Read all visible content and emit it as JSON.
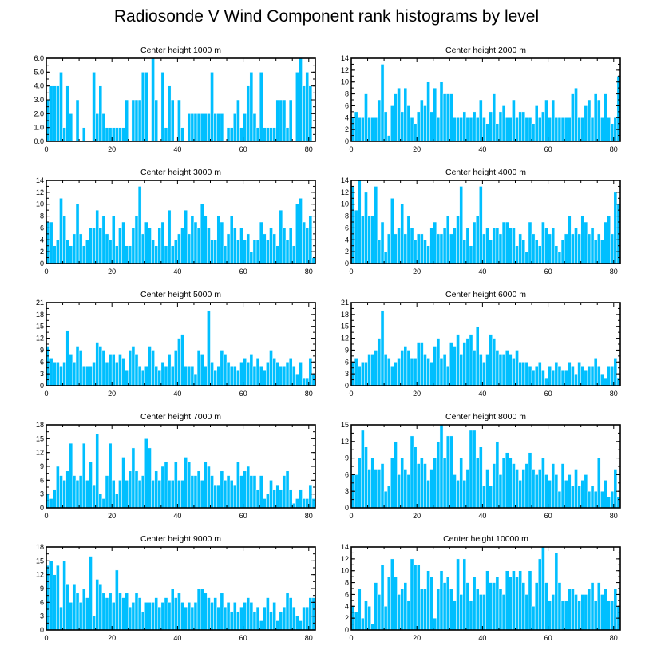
{
  "title": "Radiosonde V Wind Component rank histograms by level",
  "colors": {
    "bar": "#00bfff",
    "axis": "#000000",
    "background": "#ffffff"
  },
  "chart_data": [
    {
      "type": "bar",
      "title": "Center height 1000 m",
      "xlabel": "",
      "ylabel": "",
      "xlim": [
        0,
        82
      ],
      "ylim": [
        0,
        6
      ],
      "xticks": [
        0,
        20,
        40,
        60,
        80
      ],
      "yticks": [
        0,
        1,
        2,
        3,
        4,
        5,
        6
      ],
      "yticklabels": [
        "0.0",
        "1.0",
        "2.0",
        "3.0",
        "4.0",
        "5.0",
        "6.0"
      ],
      "x_start": 0,
      "values": [
        3,
        4,
        4,
        4,
        5,
        1,
        4,
        2,
        0,
        3,
        0,
        1,
        0,
        0,
        5,
        2,
        4,
        2,
        1,
        1,
        1,
        1,
        1,
        1,
        3,
        0,
        3,
        3,
        3,
        5,
        5,
        0,
        6,
        3,
        0,
        5,
        1,
        4,
        3,
        0,
        3,
        1,
        0,
        2,
        2,
        2,
        2,
        2,
        2,
        2,
        5,
        2,
        2,
        2,
        0,
        1,
        1,
        2,
        3,
        1,
        2,
        4,
        5,
        2,
        1,
        5,
        1,
        1,
        1,
        1,
        3,
        3,
        3,
        1,
        3,
        0,
        5,
        6,
        4,
        5,
        4,
        0
      ]
    },
    {
      "type": "bar",
      "title": "Center height 2000 m",
      "xlabel": "",
      "ylabel": "",
      "xlim": [
        0,
        82
      ],
      "ylim": [
        0,
        14
      ],
      "xticks": [
        0,
        20,
        40,
        60,
        80
      ],
      "yticks": [
        0,
        2,
        4,
        6,
        8,
        10,
        12,
        14
      ],
      "yticklabels": [
        "0",
        "2",
        "4",
        "6",
        "8",
        "10",
        "12",
        "14"
      ],
      "x_start": 0,
      "values": [
        4,
        5,
        4,
        4,
        8,
        4,
        4,
        4,
        7,
        13,
        5,
        1,
        6,
        8,
        9,
        5,
        9,
        6,
        4,
        3,
        5,
        7,
        6,
        10,
        5,
        9,
        4,
        10,
        8,
        8,
        8,
        4,
        4,
        4,
        5,
        4,
        4,
        5,
        4,
        7,
        4,
        3,
        5,
        8,
        3,
        5,
        6,
        4,
        4,
        7,
        4,
        5,
        5,
        4,
        4,
        3,
        6,
        4,
        5,
        7,
        4,
        7,
        4,
        4,
        4,
        4,
        4,
        8,
        9,
        4,
        4,
        6,
        7,
        4,
        8,
        7,
        4,
        8,
        4,
        3,
        4,
        11
      ]
    },
    {
      "type": "bar",
      "title": "Center height 3000 m",
      "xlabel": "",
      "ylabel": "",
      "xlim": [
        0,
        82
      ],
      "ylim": [
        0,
        14
      ],
      "xticks": [
        0,
        20,
        40,
        60,
        80
      ],
      "yticks": [
        0,
        2,
        4,
        6,
        8,
        10,
        12,
        14
      ],
      "yticklabels": [
        "0",
        "2",
        "4",
        "6",
        "8",
        "10",
        "12",
        "14"
      ],
      "x_start": 0,
      "values": [
        7,
        7,
        3,
        4,
        11,
        8,
        4,
        3,
        5,
        10,
        5,
        3,
        4,
        6,
        6,
        9,
        6,
        8,
        5,
        4,
        8,
        3,
        6,
        7,
        3,
        3,
        6,
        8,
        13,
        5,
        7,
        6,
        4,
        3,
        6,
        7,
        3,
        9,
        3,
        4,
        5,
        6,
        9,
        5,
        8,
        7,
        6,
        10,
        8,
        6,
        4,
        4,
        8,
        7,
        3,
        5,
        8,
        6,
        4,
        6,
        4,
        5,
        2,
        4,
        4,
        7,
        5,
        4,
        6,
        5,
        3,
        9,
        6,
        4,
        6,
        3,
        10,
        11,
        7,
        6,
        8,
        1
      ]
    },
    {
      "type": "bar",
      "title": "Center height 4000 m",
      "xlabel": "",
      "ylabel": "",
      "xlim": [
        0,
        82
      ],
      "ylim": [
        0,
        14
      ],
      "xticks": [
        0,
        20,
        40,
        60,
        80
      ],
      "yticks": [
        0,
        2,
        4,
        6,
        8,
        10,
        12,
        14
      ],
      "yticklabels": [
        "0",
        "2",
        "4",
        "6",
        "8",
        "10",
        "12",
        "14"
      ],
      "x_start": 0,
      "values": [
        13,
        9,
        14,
        8,
        12,
        8,
        8,
        13,
        4,
        7,
        2,
        5,
        11,
        5,
        6,
        10,
        5,
        8,
        6,
        4,
        5,
        5,
        4,
        3,
        6,
        7,
        5,
        5,
        6,
        8,
        5,
        6,
        8,
        13,
        4,
        6,
        3,
        7,
        8,
        13,
        5,
        6,
        4,
        6,
        6,
        5,
        7,
        7,
        6,
        6,
        3,
        5,
        4,
        2,
        7,
        5,
        4,
        3,
        7,
        6,
        5,
        6,
        3,
        2,
        4,
        5,
        8,
        5,
        6,
        5,
        8,
        7,
        5,
        6,
        4,
        5,
        4,
        7,
        8,
        5,
        12,
        10
      ]
    },
    {
      "type": "bar",
      "title": "Center height 5000 m",
      "xlabel": "",
      "ylabel": "",
      "xlim": [
        0,
        82
      ],
      "ylim": [
        0,
        21
      ],
      "xticks": [
        0,
        20,
        40,
        60,
        80
      ],
      "yticks": [
        0,
        3,
        6,
        9,
        12,
        15,
        18,
        21
      ],
      "yticklabels": [
        "0",
        "3",
        "6",
        "9",
        "12",
        "15",
        "18",
        "21"
      ],
      "x_start": 0,
      "values": [
        10,
        7,
        6,
        6,
        5,
        6,
        14,
        8,
        6,
        10,
        9,
        5,
        5,
        5,
        6,
        11,
        10,
        9,
        6,
        8,
        8,
        6,
        8,
        7,
        4,
        9,
        10,
        8,
        5,
        4,
        5,
        10,
        9,
        5,
        4,
        6,
        5,
        8,
        5,
        9,
        12,
        13,
        5,
        5,
        5,
        3,
        9,
        8,
        5,
        19,
        6,
        4,
        5,
        9,
        8,
        6,
        5,
        5,
        4,
        6,
        7,
        6,
        8,
        5,
        7,
        5,
        4,
        6,
        9,
        7,
        6,
        5,
        5,
        6,
        7,
        5,
        3,
        6,
        2,
        2,
        7,
        3
      ]
    },
    {
      "type": "bar",
      "title": "Center height 6000 m",
      "xlabel": "",
      "ylabel": "",
      "xlim": [
        0,
        82
      ],
      "ylim": [
        0,
        21
      ],
      "xticks": [
        0,
        20,
        40,
        60,
        80
      ],
      "yticks": [
        0,
        3,
        6,
        9,
        12,
        15,
        18,
        21
      ],
      "yticklabels": [
        "0",
        "3",
        "6",
        "9",
        "12",
        "15",
        "18",
        "21"
      ],
      "x_start": 0,
      "values": [
        6,
        7,
        5,
        6,
        6,
        8,
        8,
        9,
        12,
        19,
        8,
        7,
        5,
        6,
        7,
        9,
        10,
        9,
        7,
        7,
        11,
        11,
        8,
        7,
        6,
        10,
        12,
        7,
        8,
        5,
        11,
        10,
        13,
        8,
        11,
        12,
        13,
        9,
        15,
        8,
        6,
        8,
        13,
        12,
        9,
        8,
        8,
        9,
        8,
        7,
        9,
        6,
        6,
        6,
        5,
        4,
        5,
        6,
        4,
        2,
        5,
        4,
        6,
        5,
        4,
        4,
        6,
        5,
        3,
        6,
        5,
        4,
        5,
        5,
        7,
        5,
        3,
        2,
        5,
        5,
        7,
        2
      ]
    },
    {
      "type": "bar",
      "title": "Center height 7000 m",
      "xlabel": "",
      "ylabel": "",
      "xlim": [
        0,
        82
      ],
      "ylim": [
        0,
        18
      ],
      "xticks": [
        0,
        20,
        40,
        60,
        80
      ],
      "yticks": [
        0,
        3,
        6,
        9,
        12,
        15,
        18
      ],
      "yticklabels": [
        "0",
        "3",
        "6",
        "9",
        "12",
        "15",
        "18"
      ],
      "x_start": 0,
      "values": [
        3,
        2,
        4,
        9,
        7,
        6,
        8,
        14,
        7,
        6,
        7,
        14,
        6,
        10,
        5,
        16,
        3,
        2,
        7,
        14,
        6,
        3,
        6,
        11,
        6,
        8,
        13,
        8,
        6,
        7,
        15,
        13,
        6,
        8,
        6,
        9,
        10,
        6,
        6,
        10,
        6,
        6,
        11,
        10,
        7,
        7,
        8,
        6,
        10,
        9,
        7,
        5,
        5,
        8,
        6,
        7,
        6,
        5,
        10,
        7,
        8,
        9,
        7,
        7,
        4,
        7,
        2,
        3,
        6,
        4,
        5,
        4,
        7,
        8,
        4,
        1,
        2,
        4,
        2,
        2,
        5,
        2
      ]
    },
    {
      "type": "bar",
      "title": "Center height 8000 m",
      "xlabel": "",
      "ylabel": "",
      "xlim": [
        0,
        82
      ],
      "ylim": [
        0,
        15
      ],
      "xticks": [
        0,
        20,
        40,
        60,
        80
      ],
      "yticks": [
        0,
        3,
        6,
        9,
        12,
        15
      ],
      "yticklabels": [
        "0",
        "3",
        "6",
        "9",
        "12",
        "15"
      ],
      "x_start": 0,
      "values": [
        6,
        6,
        9,
        14,
        11,
        7,
        9,
        7,
        7,
        8,
        3,
        4,
        9,
        12,
        6,
        9,
        7,
        6,
        13,
        11,
        8,
        9,
        8,
        5,
        7,
        9,
        12,
        15,
        9,
        13,
        13,
        6,
        5,
        9,
        5,
        7,
        14,
        14,
        9,
        11,
        4,
        7,
        4,
        8,
        12,
        6,
        9,
        10,
        9,
        8,
        7,
        5,
        7,
        8,
        10,
        7,
        6,
        7,
        9,
        6,
        5,
        8,
        6,
        3,
        8,
        5,
        6,
        4,
        7,
        4,
        5,
        6,
        3,
        4,
        3,
        9,
        3,
        5,
        2,
        3,
        7,
        2
      ]
    },
    {
      "type": "bar",
      "title": "Center height 9000 m",
      "xlabel": "",
      "ylabel": "",
      "xlim": [
        0,
        82
      ],
      "ylim": [
        0,
        18
      ],
      "xticks": [
        0,
        20,
        40,
        60,
        80
      ],
      "yticks": [
        0,
        3,
        6,
        9,
        12,
        15,
        18
      ],
      "yticklabels": [
        "0",
        "3",
        "6",
        "9",
        "12",
        "15",
        "18"
      ],
      "x_start": 0,
      "values": [
        14,
        15,
        12,
        14,
        5,
        15,
        10,
        6,
        10,
        8,
        6,
        9,
        7,
        16,
        3,
        11,
        10,
        8,
        7,
        8,
        6,
        13,
        8,
        7,
        8,
        5,
        6,
        8,
        7,
        4,
        6,
        6,
        6,
        7,
        5,
        6,
        7,
        6,
        9,
        7,
        8,
        6,
        5,
        6,
        5,
        6,
        9,
        9,
        8,
        7,
        6,
        7,
        5,
        8,
        5,
        6,
        4,
        6,
        4,
        5,
        6,
        7,
        6,
        4,
        5,
        2,
        5,
        7,
        4,
        6,
        2,
        4,
        5,
        8,
        7,
        5,
        3,
        2,
        5,
        5,
        7,
        7
      ]
    },
    {
      "type": "bar",
      "title": "Center height 10000 m",
      "xlabel": "",
      "ylabel": "",
      "xlim": [
        0,
        82
      ],
      "ylim": [
        0,
        14
      ],
      "xticks": [
        0,
        20,
        40,
        60,
        80
      ],
      "yticks": [
        0,
        2,
        4,
        6,
        8,
        10,
        12,
        14
      ],
      "yticklabels": [
        "0",
        "2",
        "4",
        "6",
        "8",
        "10",
        "12",
        "14"
      ],
      "x_start": 0,
      "values": [
        4,
        3,
        7,
        2,
        5,
        4,
        1,
        8,
        6,
        11,
        4,
        9,
        12,
        9,
        6,
        7,
        8,
        5,
        12,
        11,
        11,
        7,
        7,
        10,
        9,
        2,
        7,
        10,
        8,
        9,
        7,
        5,
        12,
        6,
        12,
        8,
        5,
        9,
        7,
        6,
        6,
        10,
        8,
        8,
        9,
        7,
        6,
        10,
        9,
        10,
        9,
        10,
        8,
        6,
        10,
        4,
        8,
        12,
        14,
        8,
        5,
        6,
        13,
        8,
        5,
        5,
        7,
        7,
        6,
        5,
        6,
        6,
        7,
        8,
        5,
        8,
        6,
        7,
        5,
        5,
        7,
        4
      ]
    }
  ]
}
